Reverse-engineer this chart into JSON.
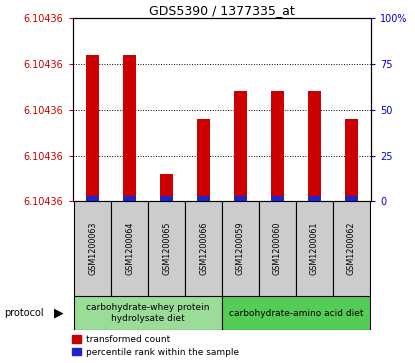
{
  "title": "GDS5390 / 1377335_at",
  "samples": [
    "GSM1200063",
    "GSM1200064",
    "GSM1200065",
    "GSM1200066",
    "GSM1200059",
    "GSM1200060",
    "GSM1200061",
    "GSM1200062"
  ],
  "ylim_min": 6.10436,
  "ylim_max": 6.10437,
  "ytick_count": 5,
  "ytick_label": "6.10436",
  "red_bar_tops": [
    6.104368,
    6.104368,
    6.1043615,
    6.1043645,
    6.104366,
    6.104366,
    6.104366,
    6.1043645
  ],
  "blue_bar_tops": [
    6.1043603,
    6.1043603,
    6.1043603,
    6.1043603,
    6.1043603,
    6.1043603,
    6.1043603,
    6.1043603
  ],
  "red_color": "#cc0000",
  "blue_color": "#2222cc",
  "bar_width": 0.35,
  "groups": [
    {
      "label": "carbohydrate-whey protein\nhydrolysate diet",
      "indices": [
        0,
        1,
        2,
        3
      ],
      "color": "#99dd99"
    },
    {
      "label": "carbohydrate-amino acid diet",
      "indices": [
        4,
        5,
        6,
        7
      ],
      "color": "#55cc55"
    }
  ],
  "protocol_label": "protocol",
  "legend_red": "transformed count",
  "legend_blue": "percentile rank within the sample",
  "right_yticks": [
    0,
    25,
    50,
    75,
    100
  ],
  "right_yticklabels": [
    "0",
    "25",
    "50",
    "75",
    "100%"
  ],
  "background_color": "#ffffff",
  "sample_bg": "#cccccc",
  "title_fontsize": 9,
  "axis_label_fontsize": 7,
  "sample_fontsize": 5.8,
  "group_fontsize": 6.5,
  "legend_fontsize": 6.5
}
